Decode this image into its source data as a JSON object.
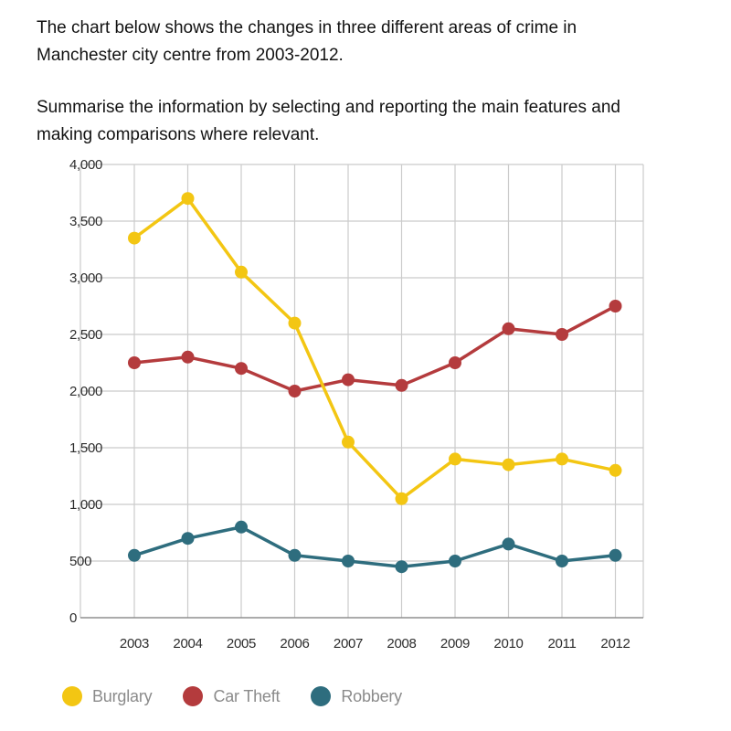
{
  "instructions": {
    "p1_line1": "The chart below shows the changes in three different areas of crime in",
    "p1_line2": "Manchester city centre from 2003-2012.",
    "p2_line1": "Summarise the information by selecting and reporting the main features and",
    "p2_line2": "making comparisons where relevant."
  },
  "chart_data": {
    "type": "line",
    "title": "",
    "xlabel": "",
    "ylabel": "",
    "x": [
      "2003",
      "2004",
      "2005",
      "2006",
      "2007",
      "2008",
      "2009",
      "2010",
      "2011",
      "2012"
    ],
    "series": [
      {
        "name": "Burglary",
        "color": "#f3c613",
        "values": [
          3350,
          3700,
          3050,
          2600,
          1550,
          1050,
          1400,
          1350,
          1400,
          1300
        ]
      },
      {
        "name": "Car Theft",
        "color": "#b43b3d",
        "values": [
          2250,
          2300,
          2200,
          2000,
          2100,
          2050,
          2250,
          2550,
          2500,
          2750
        ]
      },
      {
        "name": "Robbery",
        "color": "#2e6d7e",
        "values": [
          550,
          700,
          800,
          550,
          500,
          450,
          500,
          650,
          500,
          550
        ]
      }
    ],
    "ylim": [
      0,
      4000
    ],
    "ytick_step": 500,
    "ytick_labels": [
      "0",
      "500",
      "1,000",
      "1,500",
      "2,000",
      "2,500",
      "3,000",
      "3,500",
      "4,000"
    ],
    "grid": true,
    "legend_position": "bottom",
    "colors": {
      "gridline": "#cbcbcb",
      "axis_line": "#8f8f8f",
      "axis_text": "#2d2d2d",
      "legend_text": "#8b8b8b"
    }
  }
}
